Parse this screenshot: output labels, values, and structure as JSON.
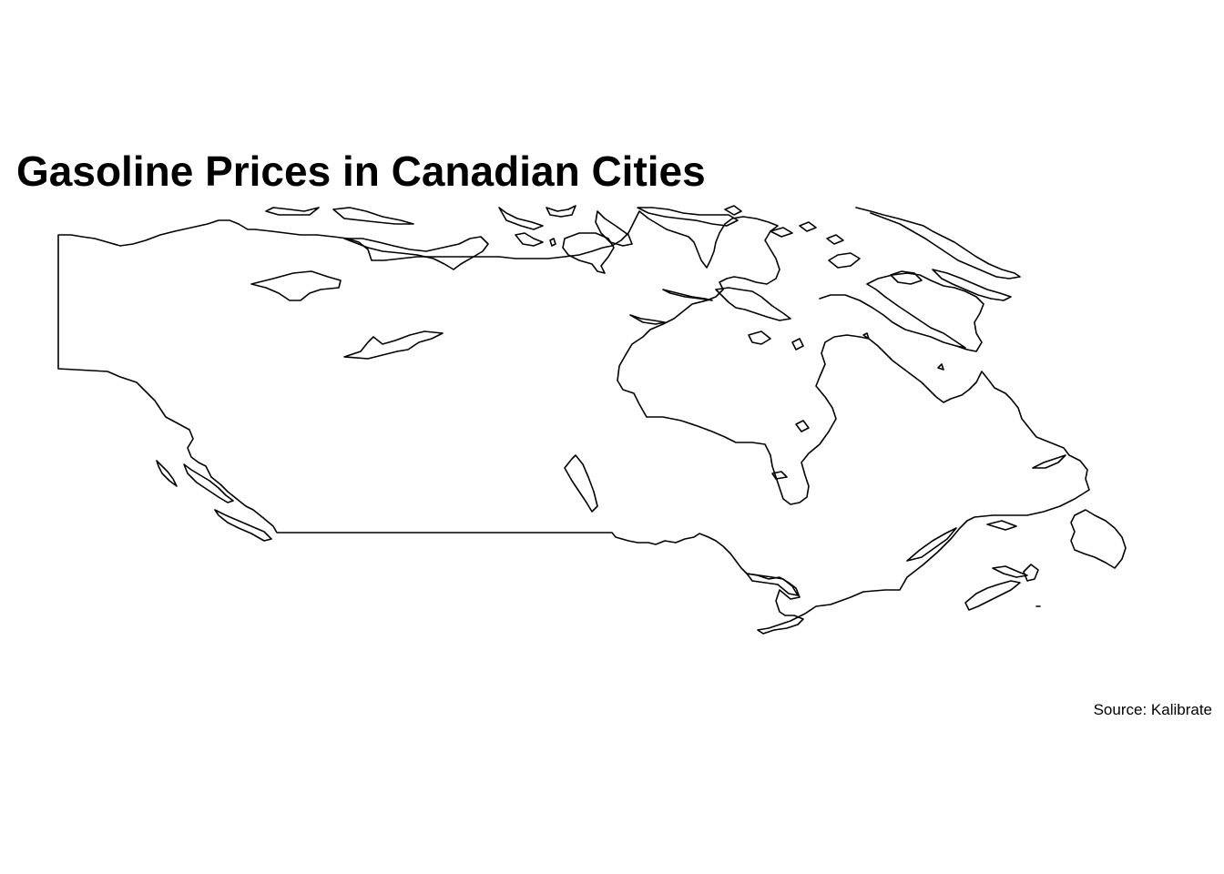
{
  "title": "Gasoline Prices in Canadian Cities",
  "caption": "Source: Kalibrate",
  "map": {
    "region": "Canada",
    "style": "outline",
    "stroke_color": "#000000",
    "fill_color": "#ffffff",
    "background_color": "#ffffff"
  }
}
